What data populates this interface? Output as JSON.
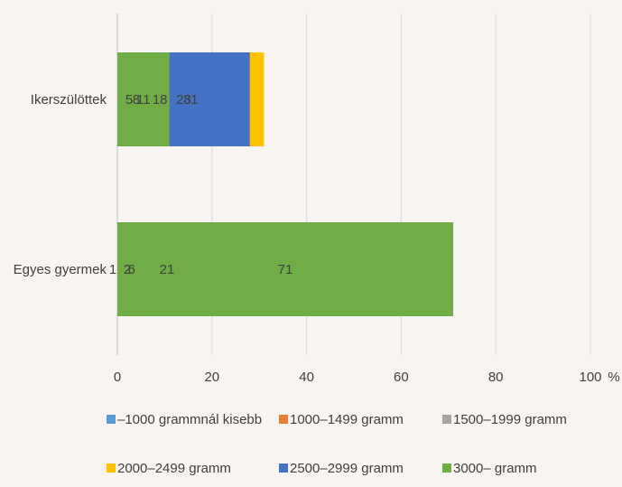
{
  "chart_data": {
    "type": "bar",
    "orientation": "horizontal",
    "stacked": true,
    "categories": [
      "Ikerszülöttek",
      "Egyes gyermek"
    ],
    "series": [
      {
        "name": "–1000 grammnál kisebb",
        "color": "#5b9bd5",
        "values": [
          5,
          0.4
        ]
      },
      {
        "name": "1000–1499 gramm",
        "color": "#ed7d31",
        "values": [
          8,
          0.6
        ]
      },
      {
        "name": "1500–1999 gramm",
        "color": "#a5a5a5",
        "values": [
          18,
          2
        ]
      },
      {
        "name": "2000–2499 gramm",
        "color": "#ffc000",
        "values": [
          31,
          6
        ]
      },
      {
        "name": "2500–2999 gramm",
        "color": "#4472c4",
        "values": [
          28,
          21
        ]
      },
      {
        "name": "3000– gramm",
        "color": "#70ad47",
        "values": [
          11,
          71
        ]
      }
    ],
    "data_labels": [
      [
        "5",
        "8",
        "18",
        "31",
        "28",
        "11"
      ],
      [
        "",
        "1",
        "2",
        "6",
        "21",
        "71"
      ]
    ],
    "xlim": [
      0,
      100
    ],
    "x_ticks": [
      "0",
      "20",
      "40",
      "60",
      "80",
      "100"
    ],
    "x_unit": "%",
    "grid": true,
    "legend_position": "bottom"
  }
}
